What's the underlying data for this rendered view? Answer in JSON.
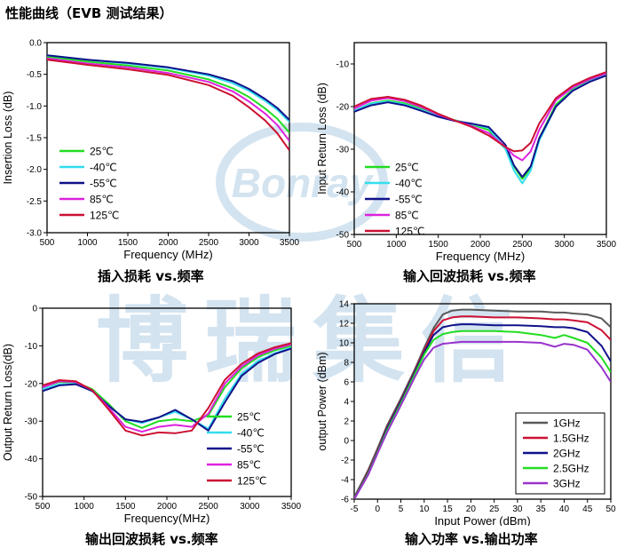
{
  "page_title": "性能曲线（EVB 测试结果）",
  "watermark": {
    "logo_text": "Bonray",
    "chinese_text": "博瑞集信"
  },
  "colors": {
    "25C": "#22dd22",
    "-40C": "#33ddee",
    "-55C": "#11118a",
    "85C": "#dd22dd",
    "125C": "#cc1133",
    "1GHz": "#5a5a5a",
    "1.5GHz": "#cc1133",
    "2GHz": "#11118a",
    "2.5GHz": "#22dd22",
    "3GHz": "#9933cc",
    "watermark": "#9fc3e0"
  },
  "chart_data": [
    {
      "id": "il",
      "type": "line",
      "caption": "插入损耗 vs.频率",
      "xlabel": "Frequency (MHz)",
      "ylabel": "Insertion Loss (dB)",
      "xlim": [
        500,
        3500
      ],
      "ylim": [
        -3.0,
        0.0
      ],
      "xticks": [
        "500",
        "1000",
        "1500",
        "2000",
        "2500",
        "3000",
        "3500"
      ],
      "yticks": [
        "0.0",
        "-0.5",
        "-1.0",
        "-1.5",
        "-2.0",
        "-2.5",
        "-3.0"
      ],
      "legend_position": "lower-left",
      "x": [
        500,
        1000,
        1500,
        2000,
        2500,
        2800,
        3000,
        3200,
        3350,
        3500
      ],
      "series": [
        {
          "name": "25℃",
          "color_key": "25C",
          "values": [
            -0.22,
            -0.3,
            -0.36,
            -0.44,
            -0.58,
            -0.72,
            -0.86,
            -1.04,
            -1.2,
            -1.42
          ]
        },
        {
          "name": "-40℃",
          "color_key": "-40C",
          "values": [
            -0.2,
            -0.27,
            -0.33,
            -0.4,
            -0.52,
            -0.64,
            -0.76,
            -0.92,
            -1.06,
            -1.25
          ]
        },
        {
          "name": "-55℃",
          "color_key": "-55C",
          "values": [
            -0.2,
            -0.27,
            -0.32,
            -0.39,
            -0.5,
            -0.61,
            -0.73,
            -0.89,
            -1.03,
            -1.22
          ]
        },
        {
          "name": "85℃",
          "color_key": "85C",
          "values": [
            -0.25,
            -0.33,
            -0.39,
            -0.48,
            -0.62,
            -0.77,
            -0.93,
            -1.12,
            -1.3,
            -1.55
          ]
        },
        {
          "name": "125℃",
          "color_key": "125C",
          "values": [
            -0.27,
            -0.35,
            -0.42,
            -0.51,
            -0.67,
            -0.84,
            -1.02,
            -1.23,
            -1.43,
            -1.7
          ]
        }
      ]
    },
    {
      "id": "irl",
      "type": "line",
      "caption": "输入回波损耗 vs.频率",
      "xlabel": "Frequency (MHz)",
      "ylabel": "Input Return Loss (dB)",
      "xlim": [
        500,
        3500
      ],
      "ylim": [
        -50,
        -5
      ],
      "xticks": [
        "500",
        "1000",
        "1500",
        "2000",
        "2500",
        "3000",
        "3500"
      ],
      "yticks": [
        "-10",
        "-20",
        "-30",
        "-40",
        "-50"
      ],
      "ytick_values": [
        -10,
        -20,
        -30,
        -40,
        -50
      ],
      "legend_position": "lower-left",
      "x": [
        500,
        700,
        900,
        1100,
        1300,
        1500,
        1700,
        1900,
        2100,
        2300,
        2400,
        2500,
        2600,
        2700,
        2900,
        3100,
        3300,
        3500
      ],
      "series": [
        {
          "name": "25℃",
          "color_key": "25C",
          "values": [
            -21,
            -19.2,
            -18.6,
            -19.2,
            -20.5,
            -22,
            -23.2,
            -24.2,
            -25.5,
            -30,
            -34,
            -37,
            -34.5,
            -27.5,
            -19.5,
            -16,
            -14,
            -12.5
          ]
        },
        {
          "name": "-40℃",
          "color_key": "-40C",
          "values": [
            -21,
            -19.3,
            -18.8,
            -19.5,
            -20.8,
            -22.2,
            -23.3,
            -24.1,
            -25,
            -30,
            -35,
            -38,
            -35,
            -28,
            -20,
            -16.2,
            -14.1,
            -12.6
          ]
        },
        {
          "name": "-55℃",
          "color_key": "-55C",
          "values": [
            -21.2,
            -19.7,
            -19,
            -19.7,
            -21,
            -22.4,
            -23.4,
            -24,
            -24.8,
            -29,
            -33.8,
            -36.5,
            -34,
            -27.5,
            -20,
            -16.3,
            -14.2,
            -12.7
          ]
        },
        {
          "name": "85℃",
          "color_key": "85C",
          "values": [
            -20.5,
            -18.6,
            -18,
            -18.7,
            -20.1,
            -21.9,
            -23.3,
            -24.6,
            -26.2,
            -29.5,
            -31.5,
            -32.6,
            -30.5,
            -25.5,
            -18.5,
            -15.5,
            -13.6,
            -12.2
          ]
        },
        {
          "name": "125℃",
          "color_key": "125C",
          "values": [
            -20,
            -18.2,
            -17.7,
            -18.4,
            -19.8,
            -21.7,
            -23.3,
            -24.8,
            -26.8,
            -29.5,
            -30.5,
            -30.3,
            -28.5,
            -24,
            -18,
            -15.1,
            -13.3,
            -11.9
          ]
        }
      ]
    },
    {
      "id": "orl",
      "type": "line",
      "caption": "输出回波损耗 vs.频率",
      "xlabel": "Frequency(MHz)",
      "ylabel": "Output Return Loss(dB)",
      "xlim": [
        500,
        3500
      ],
      "ylim": [
        -50,
        0
      ],
      "xticks": [
        "500",
        "1000",
        "1500",
        "2000",
        "2500",
        "3000",
        "3500"
      ],
      "yticks": [
        "0",
        "-10",
        "-20",
        "-30",
        "-40",
        "-50"
      ],
      "legend_position": "lower-right",
      "x": [
        500,
        700,
        900,
        1100,
        1300,
        1500,
        1700,
        1900,
        2100,
        2300,
        2500,
        2700,
        2900,
        3100,
        3300,
        3500
      ],
      "series": [
        {
          "name": "25℃",
          "color_key": "25C",
          "values": [
            -21,
            -19.6,
            -19.7,
            -21.5,
            -25.5,
            -30,
            -31.8,
            -30,
            -29.5,
            -30,
            -28.5,
            -21,
            -16,
            -13,
            -11.2,
            -10
          ]
        },
        {
          "name": "-40℃",
          "color_key": "-40C",
          "values": [
            -21.5,
            -20.2,
            -20.1,
            -22,
            -26,
            -29.5,
            -30.5,
            -29,
            -27.5,
            -29.5,
            -32,
            -24,
            -17.5,
            -14,
            -12,
            -10.5
          ]
        },
        {
          "name": "-55℃",
          "color_key": "-55C",
          "values": [
            -22,
            -20.5,
            -20.2,
            -22,
            -26,
            -29.5,
            -30.2,
            -29,
            -27,
            -29.5,
            -32.5,
            -25,
            -18,
            -14.5,
            -12.2,
            -10.7
          ]
        },
        {
          "name": "85℃",
          "color_key": "85C",
          "values": [
            -21,
            -19.4,
            -19.6,
            -21.8,
            -26.5,
            -31.5,
            -32.8,
            -31.5,
            -31,
            -31.5,
            -28,
            -20,
            -15.5,
            -12.5,
            -10.8,
            -9.6
          ]
        },
        {
          "name": "125℃",
          "color_key": "125C",
          "values": [
            -20.5,
            -19.1,
            -19.4,
            -21.8,
            -27,
            -32.5,
            -33.8,
            -33,
            -33.2,
            -32.5,
            -26.5,
            -19,
            -14.8,
            -12,
            -10.4,
            -9.3
          ]
        }
      ]
    },
    {
      "id": "pin_pout",
      "type": "line",
      "caption": "输入功率 vs.输出功率",
      "xlabel": "Input Power (dBm)",
      "ylabel": "output Power (dBm)",
      "xlim": [
        -5,
        50
      ],
      "ylim": [
        -6,
        14
      ],
      "xticks": [
        "-5",
        "0",
        "5",
        "10",
        "15",
        "20",
        "25",
        "30",
        "35",
        "40",
        "45",
        "50"
      ],
      "yticks": [
        "14",
        "12",
        "10",
        "8",
        "6",
        "4",
        "2",
        "0",
        "-2",
        "-4",
        "-6"
      ],
      "legend_position": "lower-right",
      "x": [
        -5,
        -2,
        0,
        2,
        5,
        8,
        10,
        12,
        14,
        16,
        18,
        20,
        25,
        30,
        35,
        38,
        40,
        42,
        45,
        48,
        50
      ],
      "series": [
        {
          "name": "1GHz",
          "color_key": "1GHz",
          "values": [
            -5.8,
            -3,
            -0.8,
            1.5,
            4.3,
            7.3,
            9.5,
            11.5,
            12.9,
            13.3,
            13.4,
            13.4,
            13.3,
            13.2,
            13.2,
            13.1,
            13.1,
            13.0,
            12.9,
            12.5,
            11.6
          ]
        },
        {
          "name": "1.5GHz",
          "color_key": "1.5GHz",
          "values": [
            -6,
            -3.2,
            -1,
            1.3,
            4.1,
            7.1,
            9.2,
            11.2,
            12.3,
            12.6,
            12.7,
            12.7,
            12.6,
            12.6,
            12.5,
            12.4,
            12.4,
            12.3,
            12.1,
            11.3,
            10.3
          ]
        },
        {
          "name": "2GHz",
          "color_key": "2GHz",
          "values": [
            -6,
            -3.3,
            -1.1,
            1.2,
            4.0,
            7.0,
            9.0,
            10.8,
            11.6,
            11.8,
            11.9,
            11.9,
            11.8,
            11.8,
            11.7,
            11.6,
            11.6,
            11.5,
            11.1,
            9.7,
            8.1
          ]
        },
        {
          "name": "2.5GHz",
          "color_key": "2.5GHz",
          "values": [
            -6,
            -3.4,
            -1.2,
            1.0,
            3.8,
            6.8,
            8.8,
            10.3,
            10.9,
            11.1,
            11.2,
            11.2,
            11.2,
            11.1,
            10.8,
            10.5,
            10.8,
            10.5,
            10.0,
            8.5,
            7.0
          ]
        },
        {
          "name": "3GHz",
          "color_key": "3GHz",
          "values": [
            -6,
            -3.5,
            -1.3,
            0.8,
            3.6,
            6.5,
            8.3,
            9.5,
            9.9,
            10.0,
            10.1,
            10.1,
            10.1,
            10.1,
            10.0,
            9.6,
            9.9,
            9.8,
            9.3,
            7.5,
            6.0
          ]
        }
      ]
    }
  ]
}
